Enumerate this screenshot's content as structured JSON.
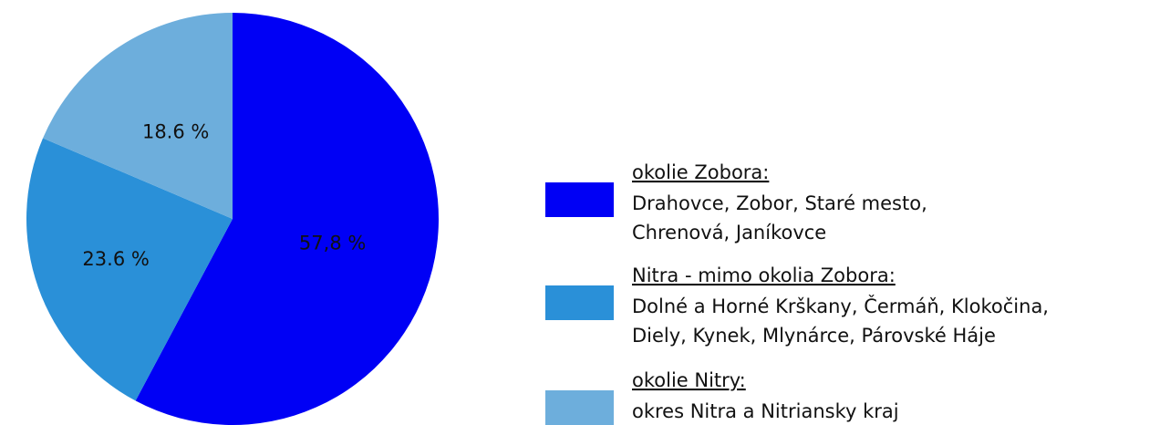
{
  "chart_data": {
    "type": "pie",
    "categories": [
      "okolie Zobora:",
      "Nitra - mimo okolia Zobora:",
      "okolie Nitry:"
    ],
    "descriptions": [
      [
        "Drahovce, Zobor, Staré mesto,",
        "Chrenová, Janíkovce"
      ],
      [
        "Dolné a Horné Krškany, Čermáň, Klokočina,",
        "Diely, Kynek, Mlynárce, Párovské Háje"
      ],
      [
        "okres Nitra a Nitriansky kraj"
      ]
    ],
    "values": [
      57.8,
      23.6,
      18.6
    ],
    "value_labels": [
      "57,8 %",
      "23.6 %",
      "18.6 %"
    ],
    "colors": [
      "#0000f5",
      "#2a90d8",
      "#6daedc"
    ]
  }
}
